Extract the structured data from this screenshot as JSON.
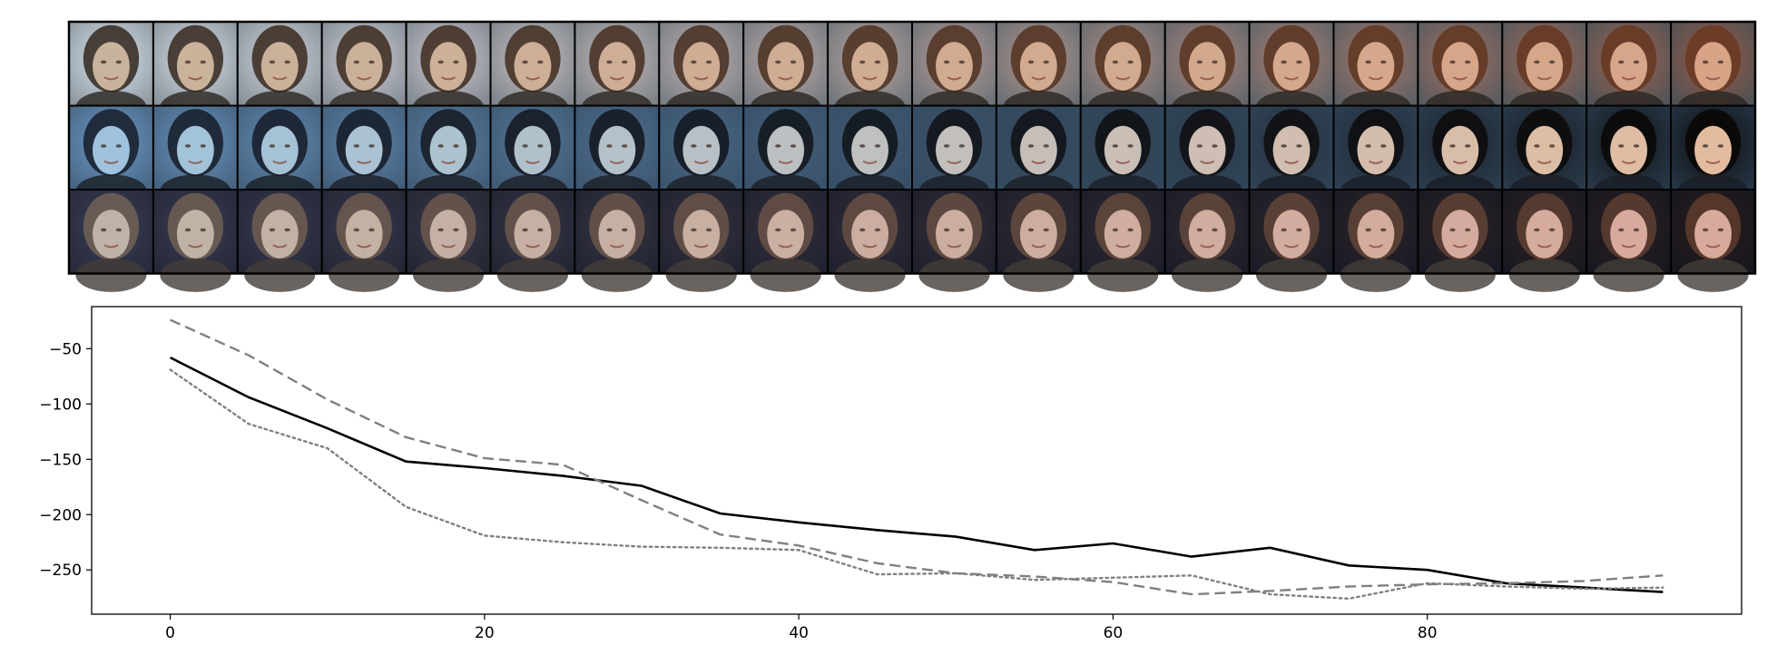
{
  "figure": {
    "image_grid": {
      "rows": 3,
      "cols": 20,
      "row_palettes": [
        {
          "bg_start": "#d9e6f2",
          "bg_end": "#9a5a45",
          "face_start": "#c9b39c",
          "face_end": "#d8a488",
          "hair_start": "#3a3028",
          "hair_end": "#6a3a22"
        },
        {
          "bg_start": "#6d9bc8",
          "bg_end": "#0e0e10",
          "face_start": "#9fc3dc",
          "face_end": "#e3bca0",
          "hair_start": "#1a2230",
          "hair_end": "#0a0806"
        },
        {
          "bg_start": "#3b3f57",
          "bg_end": "#2b1d1c",
          "face_start": "#bfb2a6",
          "face_end": "#d8aa9c",
          "hair_start": "#6d5f55",
          "hair_end": "#5a3a2e"
        }
      ]
    }
  },
  "chart_data": {
    "type": "line",
    "title": "",
    "xlabel": "",
    "ylabel": "",
    "xlim": [
      -5,
      100
    ],
    "ylim": [
      -290,
      -12
    ],
    "x_ticks": [
      0,
      20,
      40,
      60,
      80
    ],
    "y_ticks": [
      -50,
      -100,
      -150,
      -200,
      -250
    ],
    "x_tick_labels": [
      "0",
      "20",
      "40",
      "60",
      "80"
    ],
    "y_tick_labels": [
      "−50",
      "−100",
      "−150",
      "−200",
      "−250"
    ],
    "grid": false,
    "legend": "none",
    "x": [
      0,
      5,
      10,
      15,
      20,
      25,
      30,
      35,
      40,
      45,
      50,
      55,
      60,
      65,
      70,
      75,
      80,
      85,
      90,
      95
    ],
    "series": [
      {
        "style": "solid",
        "color": "#000000",
        "values": [
          -58,
          -94,
          -122,
          -152,
          -158,
          -165,
          -174,
          -199,
          -207,
          -214,
          -220,
          -232,
          -226,
          -238,
          -230,
          -246,
          -250,
          -262,
          -266,
          -270
        ]
      },
      {
        "style": "dashed",
        "color": "#808080",
        "values": [
          -24,
          -56,
          -96,
          -130,
          -149,
          -155,
          -187,
          -218,
          -228,
          -244,
          -253,
          -256,
          -261,
          -272,
          -269,
          -265,
          -263,
          -262,
          -260,
          -255
        ]
      },
      {
        "style": "dotted",
        "color": "#808080",
        "values": [
          -69,
          -118,
          -140,
          -193,
          -219,
          -225,
          -229,
          -230,
          -232,
          -254,
          -253,
          -259,
          -257,
          -255,
          -272,
          -276,
          -262,
          -265,
          -267,
          -266
        ]
      }
    ]
  }
}
